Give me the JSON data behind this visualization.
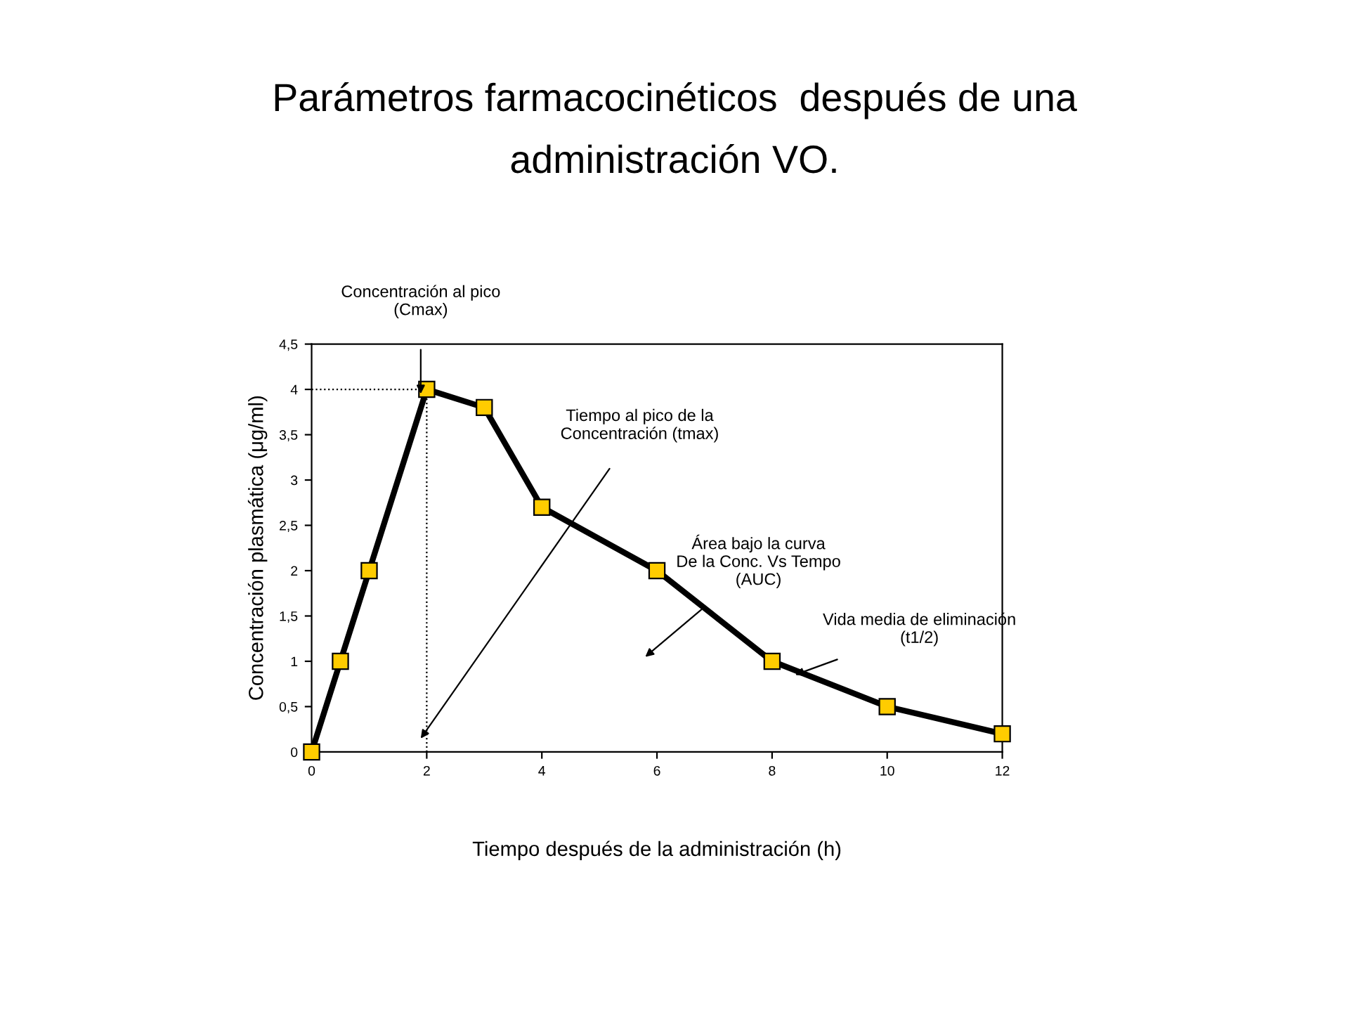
{
  "chart_data": {
    "type": "line",
    "title": "Parámetros farmacocinéticos  después de una\nadministración VO.",
    "xlabel": "Tiempo después de la administración (h)",
    "ylabel": "Concentración plasmática (μg/ml)",
    "x": [
      0,
      0.5,
      1,
      2,
      3,
      4,
      6,
      8,
      10,
      12
    ],
    "series": [
      {
        "color": "#ffcc00",
        "values": [
          0,
          1,
          2,
          4,
          3.8,
          2.7,
          2,
          1,
          0.5,
          0.2
        ]
      }
    ],
    "marker": "square",
    "line_style": "solid",
    "grid": false,
    "legend": false,
    "xlim": [
      0,
      12
    ],
    "xticks": [
      0,
      2,
      4,
      6,
      8,
      10,
      12
    ],
    "ylim": [
      0,
      4.5
    ],
    "yticks": [
      0,
      {
        "value": 0.5,
        "label": "0,5"
      },
      1,
      {
        "value": 1.5,
        "label": "1,5"
      },
      2,
      {
        "value": 2.5,
        "label": "2,5"
      },
      3,
      {
        "value": 3.5,
        "label": "3,5"
      },
      4,
      {
        "value": 4.5,
        "label": "4,5"
      }
    ],
    "ref_lines": [
      {
        "axis": "x",
        "value": 2,
        "line_style": "dotted",
        "color": "#000000"
      },
      {
        "axis": "y",
        "value": 4,
        "line_style": "dotted",
        "color": "#000000"
      }
    ],
    "annotations": [
      "Concentración al pico\n(Cmax)",
      "Tiempo al pico de la\nConcentración (tmax)",
      "Área bajo la curva\nDe la Conc. Vs Tempo\n(AUC)",
      "Vida media de eliminación\n(t1/2)"
    ]
  }
}
